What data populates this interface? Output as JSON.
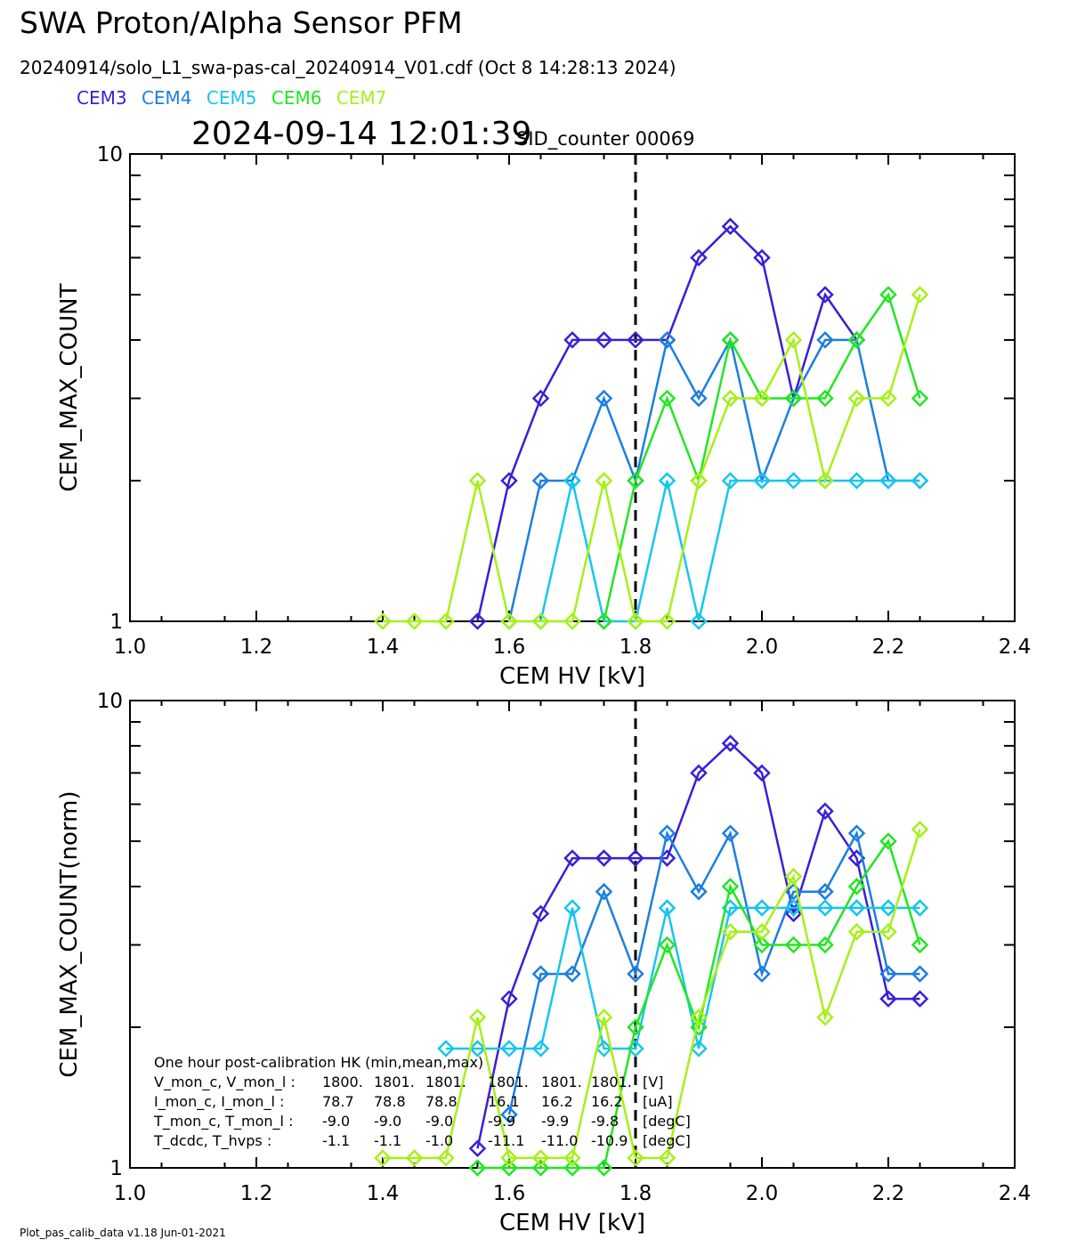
{
  "title": "SWA Proton/Alpha Sensor PFM",
  "subtitle": "20240914/solo_L1_swa-pas-cal_20240914_V01.cdf  (Oct  8 14:28:13 2024)",
  "timestamp": "2024-09-14 12:01:39",
  "sid_counter": "SID_counter 00069",
  "footer": "Plot_pas_calib_data v1.18 Jun-01-2021",
  "legend": [
    {
      "name": "CEM3",
      "color": "#3a1fd6"
    },
    {
      "name": "CEM4",
      "color": "#1d7ee0"
    },
    {
      "name": "CEM5",
      "color": "#17c6ec"
    },
    {
      "name": "CEM6",
      "color": "#22e622"
    },
    {
      "name": "CEM7",
      "color": "#a6f01a"
    }
  ],
  "marker": {
    "x": 1.8,
    "style": "dashed"
  },
  "hk_box": {
    "title": "One hour post-calibration HK (min,mean,max)",
    "rows": [
      [
        "V_mon_c, V_mon_l :",
        "1800.",
        "1801.",
        "1801.",
        "1801.",
        "1801.",
        "1801.",
        "[V]"
      ],
      [
        "I_mon_c,  I_mon_l :",
        "78.7",
        "78.8",
        "78.8",
        "16.1",
        "16.2",
        "16.2",
        "[uA]"
      ],
      [
        "T_mon_c, T_mon_l :",
        "-9.0",
        "-9.0",
        "-9.0",
        "-9.9",
        "-9.9",
        "-9.8",
        "[degC]"
      ],
      [
        "T_dcdc,    T_hvps :",
        "-1.1",
        "-1.1",
        "-1.0",
        "-11.1",
        "-11.0",
        "-10.9",
        "[degC]"
      ]
    ]
  },
  "chart_data": [
    {
      "type": "line",
      "xlabel": "CEM HV [kV]",
      "ylabel": "CEM_MAX_COUNT",
      "xlim": [
        1.0,
        2.4
      ],
      "ylim": [
        1,
        10
      ],
      "yscale": "log",
      "xticks": [
        "1.0",
        "1.2",
        "1.4",
        "1.6",
        "1.8",
        "2.0",
        "2.2",
        "2.4"
      ],
      "yticks": [
        "1",
        "10"
      ],
      "x": [
        1.4,
        1.45,
        1.5,
        1.55,
        1.6,
        1.65,
        1.7,
        1.75,
        1.8,
        1.85,
        1.9,
        1.95,
        2.0,
        2.05,
        2.1,
        2.15,
        2.2,
        2.25
      ],
      "series": [
        {
          "name": "CEM3",
          "color": "#3a1fd6",
          "values": [
            null,
            null,
            null,
            1,
            2,
            3,
            4,
            4,
            4,
            4,
            6,
            7,
            6,
            3,
            5,
            4,
            null,
            null
          ]
        },
        {
          "name": "CEM4",
          "color": "#1d7ee0",
          "values": [
            null,
            null,
            null,
            null,
            1,
            2,
            2,
            3,
            2,
            4,
            3,
            4,
            2,
            3,
            4,
            4,
            2,
            2
          ]
        },
        {
          "name": "CEM5",
          "color": "#17c6ec",
          "values": [
            null,
            null,
            null,
            null,
            null,
            1,
            2,
            1,
            1,
            2,
            1,
            2,
            2,
            2,
            2,
            2,
            2,
            2
          ]
        },
        {
          "name": "CEM6",
          "color": "#22e622",
          "values": [
            null,
            null,
            null,
            null,
            null,
            null,
            null,
            1,
            2,
            3,
            2,
            4,
            3,
            3,
            3,
            4,
            5,
            3
          ]
        },
        {
          "name": "CEM7",
          "color": "#a6f01a",
          "values": [
            1,
            1,
            1,
            2,
            1,
            1,
            1,
            2,
            1,
            1,
            2,
            3,
            3,
            4,
            2,
            3,
            3,
            5
          ]
        }
      ]
    },
    {
      "type": "line",
      "xlabel": "CEM HV [kV]",
      "ylabel": "CEM_MAX_COUNT(norm)",
      "xlim": [
        1.0,
        2.4
      ],
      "ylim": [
        1,
        10
      ],
      "yscale": "log",
      "xticks": [
        "1.0",
        "1.2",
        "1.4",
        "1.6",
        "1.8",
        "2.0",
        "2.2",
        "2.4"
      ],
      "yticks": [
        "1",
        "10"
      ],
      "x": [
        1.4,
        1.45,
        1.5,
        1.55,
        1.6,
        1.65,
        1.7,
        1.75,
        1.8,
        1.85,
        1.9,
        1.95,
        2.0,
        2.05,
        2.1,
        2.15,
        2.2,
        2.25
      ],
      "series": [
        {
          "name": "CEM3",
          "color": "#3a1fd6",
          "values": [
            null,
            null,
            null,
            1.1,
            2.3,
            3.5,
            4.6,
            4.6,
            4.6,
            4.6,
            7.0,
            8.1,
            7.0,
            3.5,
            5.8,
            4.6,
            2.3,
            2.3
          ]
        },
        {
          "name": "CEM4",
          "color": "#1d7ee0",
          "values": [
            null,
            null,
            null,
            null,
            1.3,
            2.6,
            2.6,
            3.9,
            2.6,
            5.2,
            3.9,
            5.2,
            2.6,
            3.9,
            3.9,
            5.2,
            2.6,
            2.6
          ]
        },
        {
          "name": "CEM5",
          "color": "#17c6ec",
          "values": [
            null,
            null,
            1.8,
            1.8,
            1.8,
            1.8,
            3.6,
            1.8,
            1.8,
            3.6,
            1.8,
            3.6,
            3.6,
            3.6,
            3.6,
            3.6,
            3.6,
            3.6
          ]
        },
        {
          "name": "CEM6",
          "color": "#22e622",
          "values": [
            null,
            null,
            null,
            1,
            1,
            1,
            1,
            1,
            2,
            3,
            2,
            4,
            3,
            3,
            3,
            4,
            5,
            3
          ]
        },
        {
          "name": "CEM7",
          "color": "#a6f01a",
          "values": [
            1.05,
            1.05,
            1.05,
            2.1,
            1.05,
            1.05,
            1.05,
            2.1,
            1.05,
            1.05,
            2.1,
            3.2,
            3.2,
            4.2,
            2.1,
            3.2,
            3.2,
            5.3
          ]
        }
      ]
    }
  ]
}
